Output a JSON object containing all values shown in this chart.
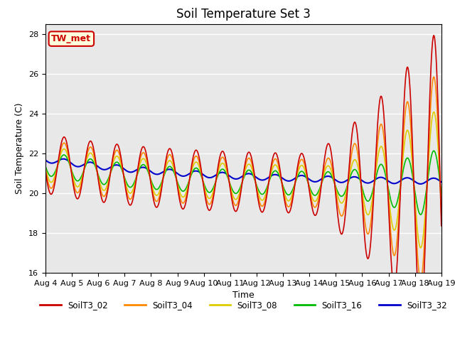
{
  "title": "Soil Temperature Set 3",
  "xlabel": "Time",
  "ylabel": "Soil Temperature (C)",
  "ylim": [
    16,
    28.5
  ],
  "xlim_days": [
    0,
    15
  ],
  "annotation_text": "TW_met",
  "annotation_color": "#cc0000",
  "annotation_bg": "#ffffdd",
  "series": {
    "SoilT3_02": {
      "color": "#cc0000",
      "lw": 1.2
    },
    "SoilT3_04": {
      "color": "#ff8800",
      "lw": 1.2
    },
    "SoilT3_08": {
      "color": "#ddcc00",
      "lw": 1.2
    },
    "SoilT3_16": {
      "color": "#00bb00",
      "lw": 1.2
    },
    "SoilT3_32": {
      "color": "#0000cc",
      "lw": 1.5
    }
  },
  "tick_labels": [
    "Aug 4",
    "Aug 5",
    "Aug 6",
    "Aug 7",
    "Aug 8",
    "Aug 9",
    "Aug 10",
    "Aug 11",
    "Aug 12",
    "Aug 13",
    "Aug 14",
    "Aug 15",
    "Aug 16",
    "Aug 17",
    "Aug 18",
    "Aug 19"
  ],
  "yticks": [
    16,
    18,
    20,
    22,
    24,
    26,
    28
  ],
  "background_color": "#e8e8e8",
  "grid_color": "#ffffff",
  "fig_bg": "#ffffff"
}
